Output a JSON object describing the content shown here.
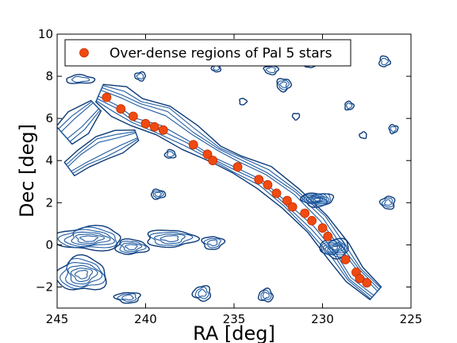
{
  "chart_data": {
    "type": "scatter",
    "xlabel": "RA [deg]",
    "ylabel": "Dec [deg]",
    "xlim": [
      245,
      225
    ],
    "ylim": [
      -3,
      10
    ],
    "x_inverted": true,
    "xticks": [
      245,
      240,
      235,
      230,
      225
    ],
    "yticks": [
      -2,
      0,
      2,
      4,
      6,
      8,
      10
    ],
    "grid": false,
    "legend_position": "top-left",
    "series": [
      {
        "name": "Over-dense regions of Pal 5 stars",
        "color": "#f04a10",
        "points": [
          [
            242.2,
            7.0
          ],
          [
            241.4,
            6.45
          ],
          [
            240.7,
            6.1
          ],
          [
            240.0,
            5.75
          ],
          [
            239.5,
            5.6
          ],
          [
            239.0,
            5.45
          ],
          [
            237.3,
            4.75
          ],
          [
            236.5,
            4.3
          ],
          [
            236.2,
            4.0
          ],
          [
            234.8,
            3.7
          ],
          [
            233.6,
            3.1
          ],
          [
            233.1,
            2.85
          ],
          [
            232.6,
            2.45
          ],
          [
            232.0,
            2.1
          ],
          [
            231.7,
            1.8
          ],
          [
            231.0,
            1.5
          ],
          [
            230.6,
            1.15
          ],
          [
            230.0,
            0.8
          ],
          [
            229.7,
            0.4
          ],
          [
            228.7,
            -0.7
          ],
          [
            228.1,
            -1.3
          ],
          [
            227.9,
            -1.6
          ],
          [
            227.5,
            -1.8
          ]
        ]
      }
    ],
    "background": {
      "type": "contour-density",
      "color": "#1f5aa0",
      "contour_shapes": [
        {
          "kind": "band",
          "points": [
            [
              242.6,
              7.2
            ],
            [
              241.5,
              6.8
            ],
            [
              240.5,
              6.3
            ],
            [
              239.0,
              5.9
            ],
            [
              237.5,
              5.1
            ],
            [
              236.0,
              4.3
            ],
            [
              234.8,
              3.8
            ],
            [
              233.3,
              3.2
            ],
            [
              231.8,
              2.2
            ],
            [
              230.3,
              1.0
            ],
            [
              229.1,
              -0.3
            ],
            [
              228.2,
              -1.4
            ],
            [
              227.0,
              -2.3
            ]
          ],
          "widths": [
            0.45,
            0.7,
            0.8,
            0.75,
            0.6,
            0.5,
            0.45,
            0.55,
            0.7,
            0.6,
            0.55,
            0.6,
            0.4
          ],
          "rings": 4
        },
        {
          "kind": "band",
          "points": [
            [
              244.6,
              5.2
            ],
            [
              243.8,
              5.8
            ],
            [
              242.8,
              6.6
            ]
          ],
          "widths": [
            0.5,
            0.7,
            0.4
          ],
          "rings": 3
        },
        {
          "kind": "band",
          "points": [
            [
              244.3,
              3.6
            ],
            [
              243.5,
              4.1
            ],
            [
              242.5,
              4.6
            ],
            [
              241.5,
              4.9
            ],
            [
              240.5,
              5.2
            ]
          ],
          "widths": [
            0.35,
            0.55,
            0.6,
            0.5,
            0.3
          ],
          "rings": 3
        },
        {
          "kind": "blob",
          "c": [
            230.3,
            2.15
          ],
          "r": [
            0.9,
            0.32
          ],
          "rings": 8
        },
        {
          "kind": "blob",
          "c": [
            229.3,
            -0.15
          ],
          "r": [
            0.8,
            0.45
          ],
          "rings": 8
        },
        {
          "kind": "blob",
          "c": [
            243.2,
            0.3
          ],
          "r": [
            1.9,
            0.55
          ],
          "rings": 6
        },
        {
          "kind": "blob",
          "c": [
            243.6,
            -1.4
          ],
          "r": [
            1.4,
            0.8
          ],
          "rings": 6
        },
        {
          "kind": "blob",
          "c": [
            240.8,
            -0.1
          ],
          "r": [
            0.9,
            0.35
          ],
          "rings": 4
        },
        {
          "kind": "blob",
          "c": [
            238.6,
            0.3
          ],
          "r": [
            1.4,
            0.4
          ],
          "rings": 4
        },
        {
          "kind": "blob",
          "c": [
            236.2,
            0.1
          ],
          "r": [
            0.6,
            0.3
          ],
          "rings": 3
        },
        {
          "kind": "blob",
          "c": [
            241.0,
            -2.5
          ],
          "r": [
            0.7,
            0.25
          ],
          "rings": 3
        },
        {
          "kind": "blob",
          "c": [
            236.8,
            -2.3
          ],
          "r": [
            0.5,
            0.35
          ],
          "rings": 3
        },
        {
          "kind": "blob",
          "c": [
            233.2,
            -2.4
          ],
          "r": [
            0.4,
            0.3
          ],
          "rings": 3
        },
        {
          "kind": "blob",
          "c": [
            243.7,
            7.85
          ],
          "r": [
            0.8,
            0.2
          ],
          "rings": 2
        },
        {
          "kind": "blob",
          "c": [
            239.3,
            2.4
          ],
          "r": [
            0.4,
            0.22
          ],
          "rings": 3
        },
        {
          "kind": "blob",
          "c": [
            232.2,
            7.6
          ],
          "r": [
            0.4,
            0.3
          ],
          "rings": 3
        },
        {
          "kind": "blob",
          "c": [
            232.9,
            8.3
          ],
          "r": [
            0.4,
            0.2
          ],
          "rings": 2
        },
        {
          "kind": "blob",
          "c": [
            226.3,
            2.0
          ],
          "r": [
            0.4,
            0.3
          ],
          "rings": 3
        },
        {
          "kind": "blob",
          "c": [
            236.0,
            8.4
          ],
          "r": [
            0.25,
            0.2
          ],
          "rings": 2
        },
        {
          "kind": "blob",
          "c": [
            230.7,
            8.6
          ],
          "r": [
            0.3,
            0.2
          ],
          "rings": 2
        },
        {
          "kind": "blob",
          "c": [
            228.5,
            6.6
          ],
          "r": [
            0.25,
            0.2
          ],
          "rings": 2
        },
        {
          "kind": "blob",
          "c": [
            226.0,
            5.5
          ],
          "r": [
            0.25,
            0.2
          ],
          "rings": 2
        },
        {
          "kind": "blob",
          "c": [
            231.5,
            6.1
          ],
          "r": [
            0.2,
            0.15
          ],
          "rings": 1
        },
        {
          "kind": "blob",
          "c": [
            240.3,
            8.0
          ],
          "r": [
            0.3,
            0.2
          ],
          "rings": 2
        },
        {
          "kind": "blob",
          "c": [
            227.7,
            5.2
          ],
          "r": [
            0.2,
            0.15
          ],
          "rings": 1
        },
        {
          "kind": "blob",
          "c": [
            238.6,
            4.3
          ],
          "r": [
            0.3,
            0.2
          ],
          "rings": 2
        },
        {
          "kind": "blob",
          "c": [
            226.5,
            8.7
          ],
          "r": [
            0.3,
            0.25
          ],
          "rings": 2
        },
        {
          "kind": "blob",
          "c": [
            234.5,
            6.8
          ],
          "r": [
            0.2,
            0.15
          ],
          "rings": 1
        }
      ]
    }
  }
}
